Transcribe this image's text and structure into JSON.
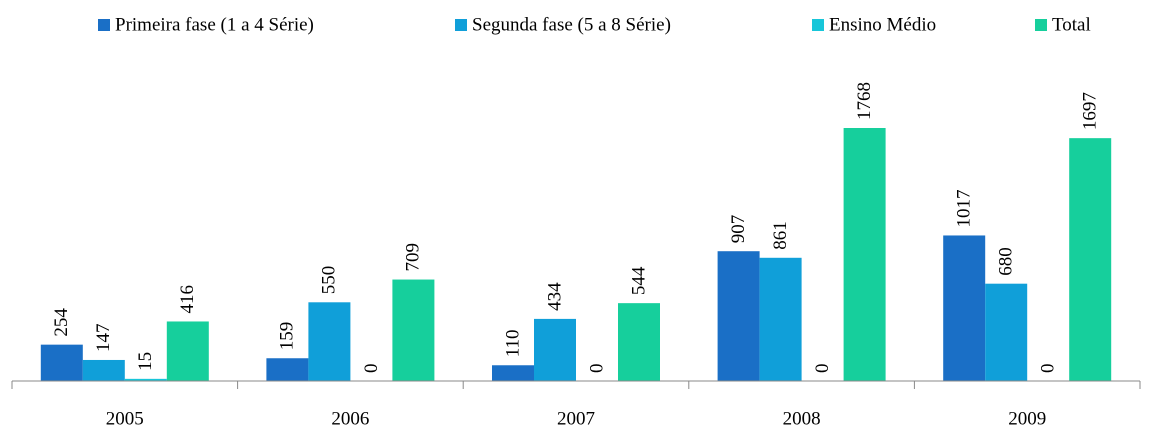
{
  "chart_data": {
    "type": "bar",
    "categories": [
      "2005",
      "2006",
      "2007",
      "2008",
      "2009"
    ],
    "series": [
      {
        "name": "Primeira fase (1 a 4 Série)",
        "color": "#1a6fc6",
        "values": [
          254,
          159,
          110,
          907,
          1017
        ]
      },
      {
        "name": "Segunda fase (5 a 8 Série)",
        "color": "#109fd9",
        "values": [
          147,
          550,
          434,
          861,
          680
        ]
      },
      {
        "name": "Ensino Médio",
        "color": "#17c6d9",
        "values": [
          15,
          0,
          0,
          0,
          0
        ]
      },
      {
        "name": "Total",
        "color": "#16cf9c",
        "values": [
          416,
          709,
          544,
          1768,
          1697
        ]
      }
    ],
    "legend": "top"
  }
}
